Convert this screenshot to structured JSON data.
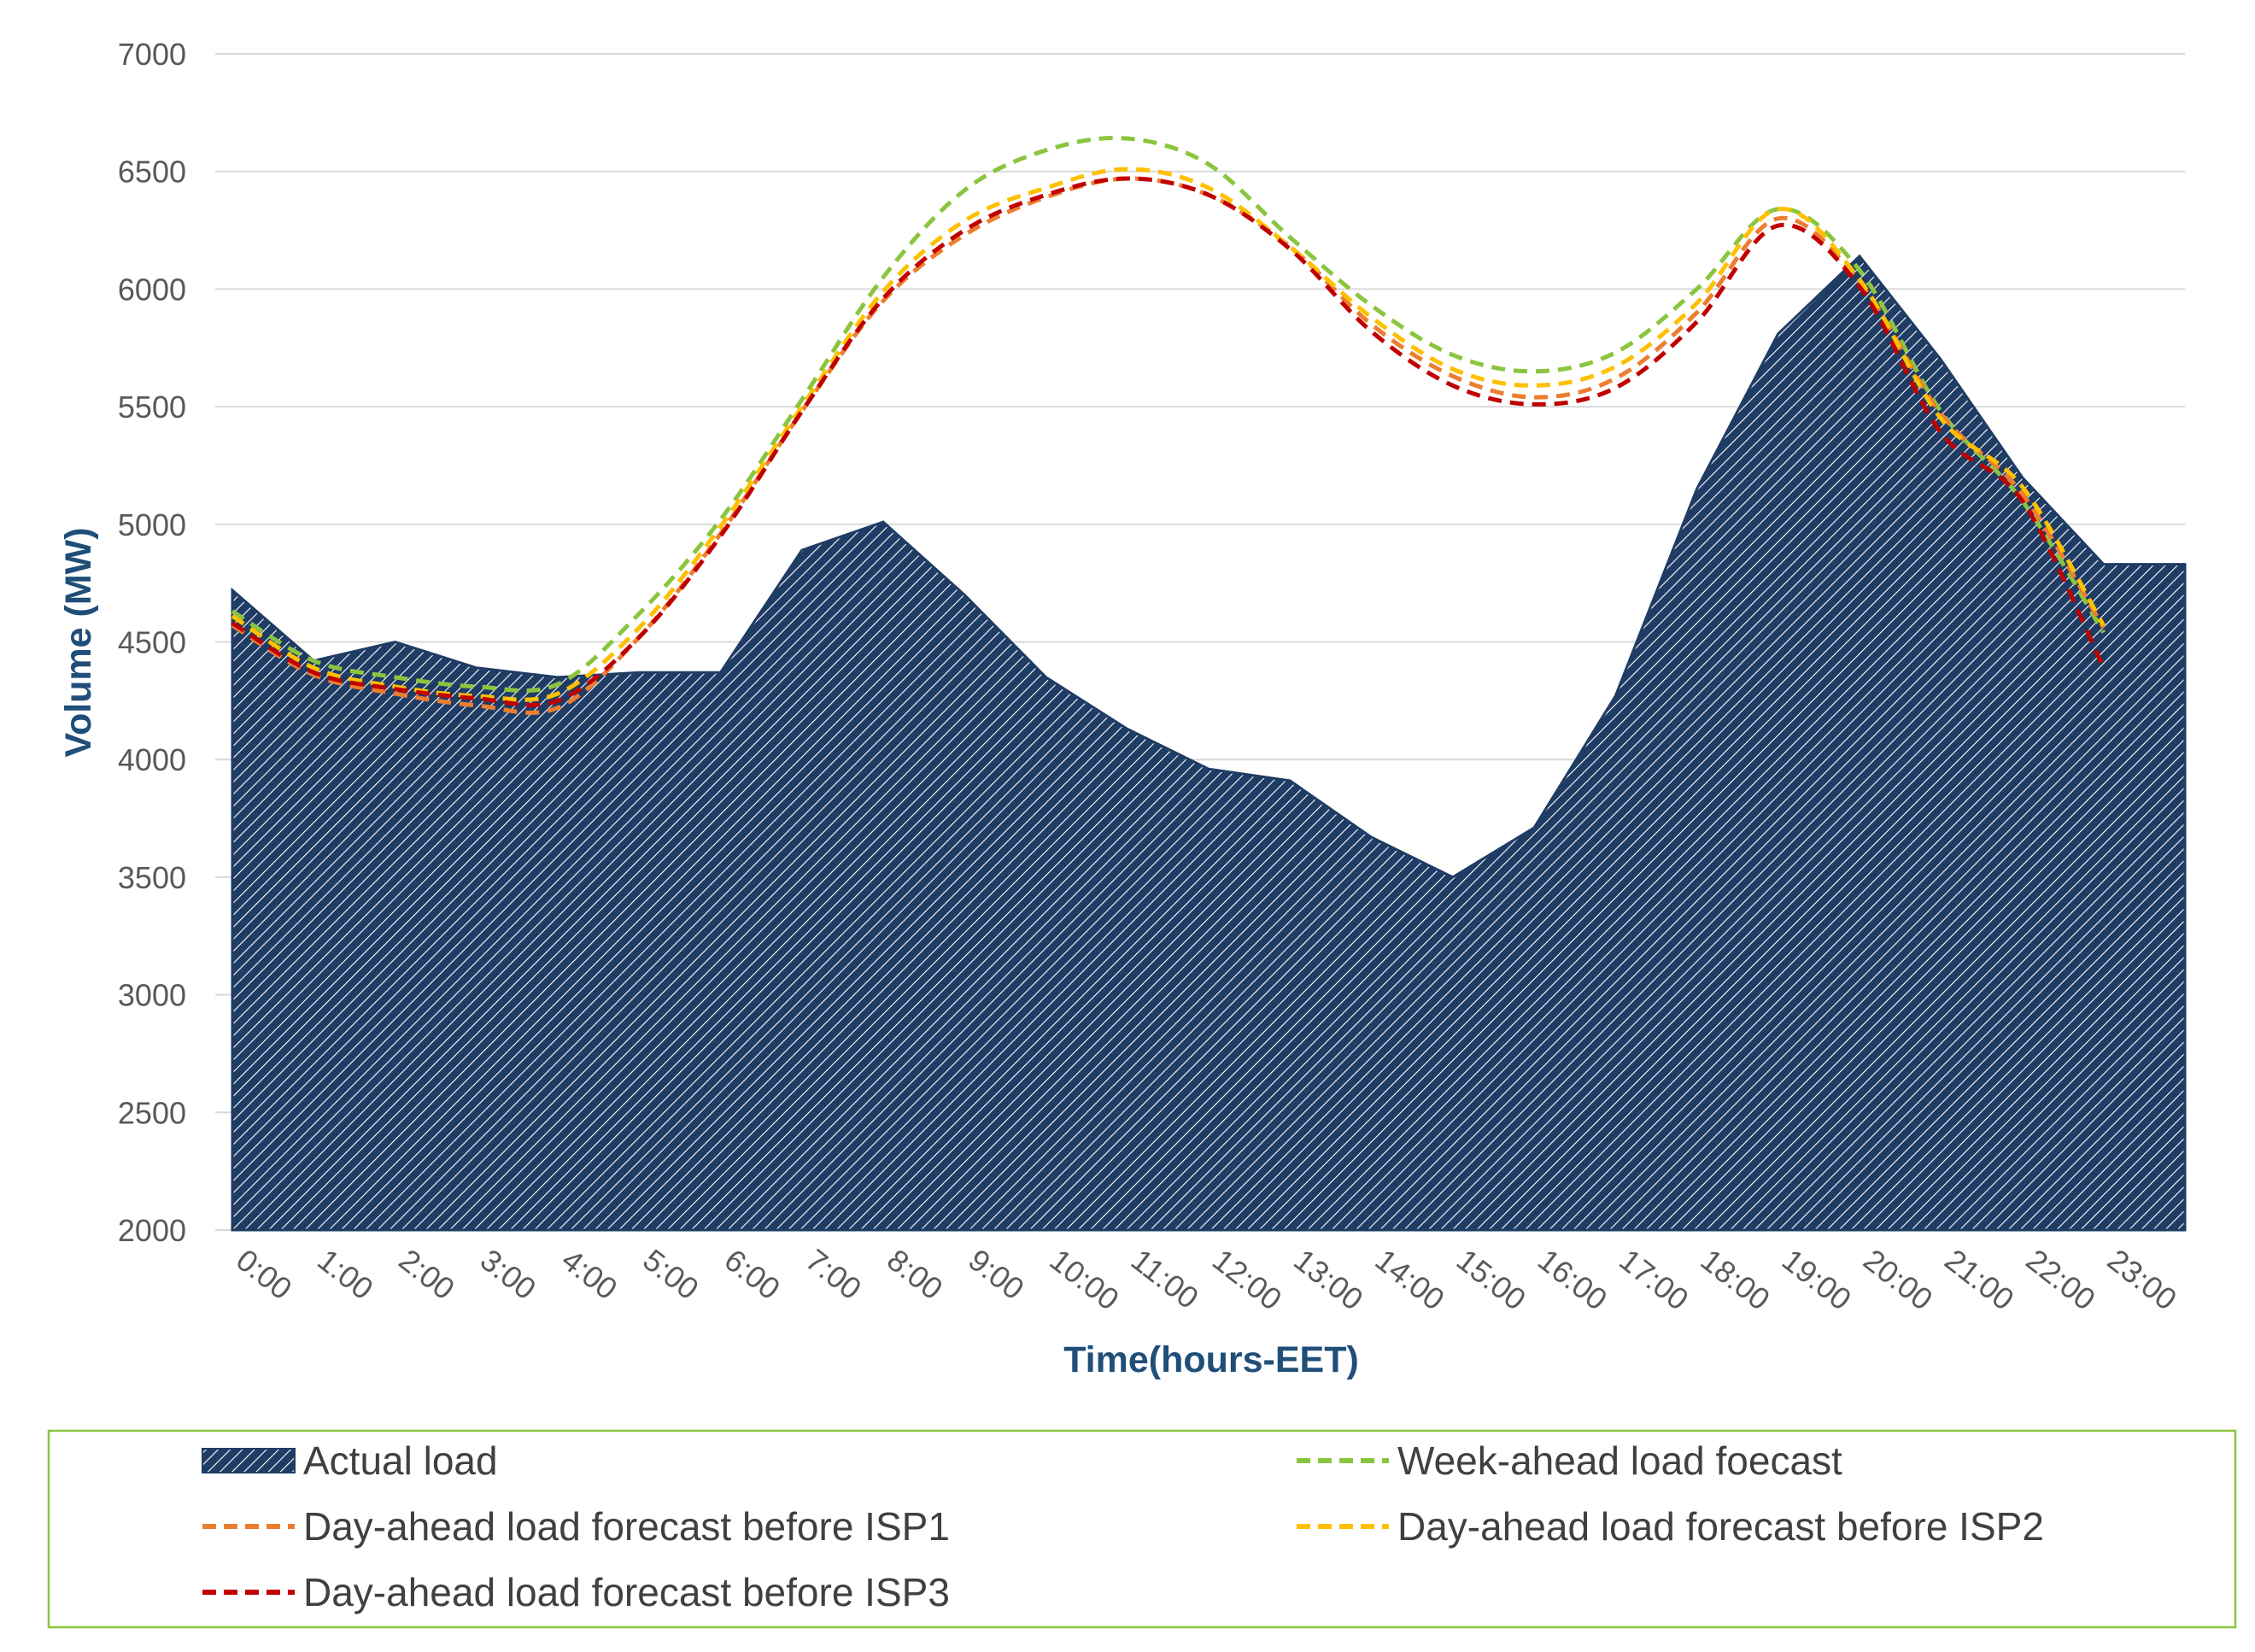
{
  "chart_data": {
    "type": "area",
    "xlabel": "Time(hours-EET)",
    "ylabel": "Volume (MW)",
    "ylim": [
      2000,
      7000
    ],
    "yticks": [
      2000,
      2500,
      3000,
      3500,
      4000,
      4500,
      5000,
      5500,
      6000,
      6500,
      7000
    ],
    "grid": true,
    "legend_position": "bottom",
    "categories": [
      "0:00",
      "1:00",
      "2:00",
      "3:00",
      "4:00",
      "5:00",
      "6:00",
      "7:00",
      "8:00",
      "9:00",
      "10:00",
      "11:00",
      "12:00",
      "13:00",
      "14:00",
      "15:00",
      "16:00",
      "17:00",
      "18:00",
      "19:00",
      "20:00",
      "21:00",
      "22:00",
      "23:00"
    ],
    "series": [
      {
        "name": "Actual load",
        "kind": "area",
        "color": "#1f3c64",
        "hatch": true,
        "values": [
          4720,
          4420,
          4500,
          4390,
          4350,
          4370,
          4370,
          4890,
          5010,
          4700,
          4350,
          4130,
          3960,
          3910,
          3670,
          3500,
          3710,
          4270,
          5150,
          5810,
          6140,
          5700,
          5200,
          4830
        ],
        "last_step_end": 4830
      },
      {
        "name": "Week-ahead load foecast",
        "kind": "line",
        "color": "#8bc53f",
        "values": [
          4630,
          4420,
          4350,
          4310,
          4320,
          4620,
          5020,
          5530,
          6050,
          6420,
          6590,
          6640,
          6530,
          6220,
          5930,
          5720,
          5650,
          5730,
          6000,
          6340,
          6080,
          5480,
          5100,
          4540
        ]
      },
      {
        "name": "Day-ahead load forecast before ISP1",
        "kind": "line",
        "color": "#ed7d31",
        "values": [
          4570,
          4360,
          4280,
          4230,
          4220,
          4520,
          4960,
          5480,
          5950,
          6230,
          6390,
          6470,
          6400,
          6180,
          5850,
          5630,
          5540,
          5620,
          5900,
          6300,
          6030,
          5470,
          5130,
          4560
        ]
      },
      {
        "name": "Day-ahead load forecast before ISP2",
        "kind": "line",
        "color": "#ffc000",
        "values": [
          4610,
          4390,
          4310,
          4270,
          4280,
          4560,
          4990,
          5500,
          5990,
          6290,
          6430,
          6510,
          6430,
          6180,
          5880,
          5660,
          5590,
          5670,
          5940,
          6340,
          6040,
          5450,
          5160,
          4570
        ]
      },
      {
        "name": "Day-ahead load forecast before ISP3",
        "kind": "line",
        "color": "#c00000",
        "values": [
          4580,
          4370,
          4300,
          4260,
          4250,
          4520,
          4950,
          5480,
          5960,
          6250,
          6400,
          6470,
          6400,
          6170,
          5820,
          5590,
          5510,
          5580,
          5860,
          6270,
          6010,
          5390,
          5100,
          4390
        ]
      }
    ]
  }
}
